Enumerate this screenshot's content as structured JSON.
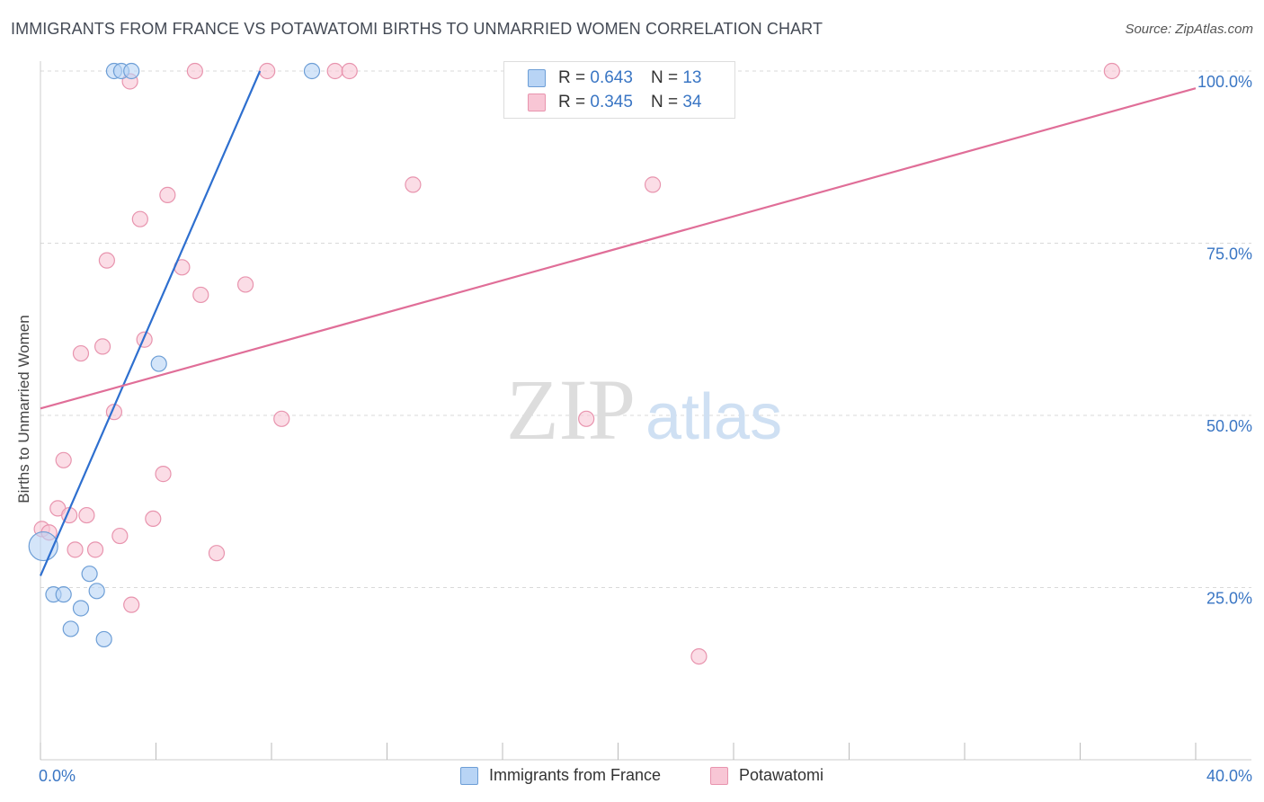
{
  "title": "IMMIGRANTS FROM FRANCE VS POTAWATOMI BIRTHS TO UNMARRIED WOMEN CORRELATION CHART",
  "source": "Source: ZipAtlas.com",
  "watermark": {
    "zip": "ZIP",
    "atlas": "atlas"
  },
  "colors": {
    "blue_fill": "#b8d4f5",
    "blue_stroke": "#6d9ed6",
    "blue_line": "#2e6fcf",
    "pink_fill": "#f8c6d5",
    "pink_stroke": "#e894ae",
    "pink_line": "#e06e98",
    "grid": "#d9d9d9",
    "axis_label": "#3a76c4"
  },
  "legend_top": [
    {
      "r_label": "R =",
      "r_value": "0.643",
      "n_label": "N =",
      "n_value": "13"
    },
    {
      "r_label": "R =",
      "r_value": "0.345",
      "n_label": "N =",
      "n_value": "34"
    }
  ],
  "chart_data": {
    "type": "scatter",
    "title": "IMMIGRANTS FROM FRANCE VS POTAWATOMI BIRTHS TO UNMARRIED WOMEN CORRELATION CHART",
    "xlabel": "",
    "ylabel": "Births to Unmarried Women",
    "xlim": [
      0,
      40
    ],
    "ylim": [
      0,
      100
    ],
    "x_tick_labels": [
      "0.0%",
      "40.0%"
    ],
    "y_tick_labels": [
      "25.0%",
      "50.0%",
      "75.0%",
      "100.0%"
    ],
    "y_ticks": [
      25,
      50,
      75,
      100
    ],
    "grid": true,
    "legend_position": "bottom",
    "series": [
      {
        "name": "Immigrants from France",
        "color": "blue",
        "r": 0.643,
        "n": 13,
        "trend": {
          "x": [
            0.0,
            7.6
          ],
          "y": [
            26.7,
            100.0
          ]
        },
        "points": [
          {
            "x": 0.1,
            "y": 31.0,
            "big": true
          },
          {
            "x": 0.45,
            "y": 24.0
          },
          {
            "x": 0.8,
            "y": 24.0
          },
          {
            "x": 1.05,
            "y": 19.0
          },
          {
            "x": 1.4,
            "y": 22.0
          },
          {
            "x": 1.7,
            "y": 27.0
          },
          {
            "x": 1.95,
            "y": 24.5
          },
          {
            "x": 2.2,
            "y": 17.5
          },
          {
            "x": 2.55,
            "y": 100.0
          },
          {
            "x": 2.8,
            "y": 100.0
          },
          {
            "x": 3.15,
            "y": 100.0
          },
          {
            "x": 4.1,
            "y": 57.5
          },
          {
            "x": 9.4,
            "y": 100.0
          }
        ]
      },
      {
        "name": "Potawatomi",
        "color": "pink",
        "r": 0.345,
        "n": 34,
        "trend": {
          "x": [
            0.0,
            40.0
          ],
          "y": [
            51.0,
            97.5
          ]
        },
        "points": [
          {
            "x": 0.05,
            "y": 33.5
          },
          {
            "x": 0.3,
            "y": 33.0
          },
          {
            "x": 0.6,
            "y": 36.5
          },
          {
            "x": 0.8,
            "y": 43.5
          },
          {
            "x": 1.0,
            "y": 35.5
          },
          {
            "x": 1.2,
            "y": 30.5
          },
          {
            "x": 1.4,
            "y": 59.0
          },
          {
            "x": 1.6,
            "y": 35.5
          },
          {
            "x": 1.9,
            "y": 30.5
          },
          {
            "x": 2.15,
            "y": 60.0
          },
          {
            "x": 2.3,
            "y": 72.5
          },
          {
            "x": 2.55,
            "y": 50.5
          },
          {
            "x": 2.75,
            "y": 32.5
          },
          {
            "x": 3.1,
            "y": 98.5
          },
          {
            "x": 3.15,
            "y": 22.5
          },
          {
            "x": 3.45,
            "y": 78.5
          },
          {
            "x": 3.6,
            "y": 61.0
          },
          {
            "x": 3.9,
            "y": 35.0
          },
          {
            "x": 4.25,
            "y": 41.5
          },
          {
            "x": 4.4,
            "y": 82.0
          },
          {
            "x": 4.9,
            "y": 71.5
          },
          {
            "x": 5.35,
            "y": 100.0
          },
          {
            "x": 5.55,
            "y": 67.5
          },
          {
            "x": 6.1,
            "y": 30.0
          },
          {
            "x": 7.1,
            "y": 69.0
          },
          {
            "x": 7.85,
            "y": 100.0
          },
          {
            "x": 8.35,
            "y": 49.5
          },
          {
            "x": 10.2,
            "y": 100.0
          },
          {
            "x": 10.7,
            "y": 100.0
          },
          {
            "x": 12.9,
            "y": 83.5
          },
          {
            "x": 18.9,
            "y": 49.5
          },
          {
            "x": 21.2,
            "y": 83.5
          },
          {
            "x": 22.8,
            "y": 15.0
          },
          {
            "x": 37.1,
            "y": 100.0
          }
        ]
      }
    ]
  }
}
